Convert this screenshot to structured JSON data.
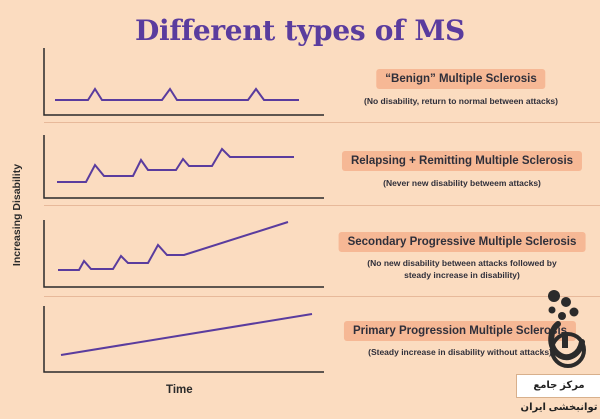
{
  "title": "Different types of MS",
  "axis": {
    "ylabel": "Increasing Disability",
    "xlabel": "Time"
  },
  "colors": {
    "line": "#5a3c9e",
    "axis": "#2a2a2a",
    "pill": "#f6b895",
    "background": "#fbdcc0"
  },
  "panels": [
    {
      "label": "“Benign” Multiple Sclerosis",
      "description": "(No disability, return to normal between attacks)"
    },
    {
      "label": "Relapsing + Remitting Multiple Sclerosis",
      "description": "(Never new disability betweem attacks)"
    },
    {
      "label": "Secondary Progressive Multiple Sclerosis",
      "description": "(No new disability between attacks followed by steady increase in disability)"
    },
    {
      "label": "Primary Progression Multiple Sclerosis",
      "description": "(Steady increase in disability without attacks)"
    }
  ],
  "watermark": {
    "text": "مرکز جامع توانبخشی ایران",
    "icon": "wheelchair-person-logo-icon"
  }
}
